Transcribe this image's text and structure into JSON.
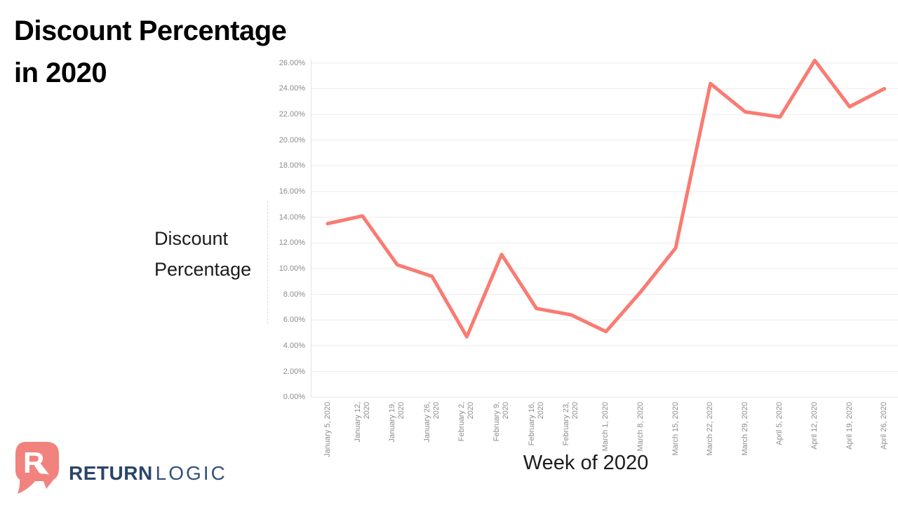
{
  "title": {
    "line1": "Discount Percentage",
    "line2": "in 2020"
  },
  "y_axis_title": "Discount\nPercentage",
  "x_axis_title": "Week of 2020",
  "logo": {
    "brand_bold": "RETURN",
    "brand_light": "LOGIC",
    "icon": "returnlogic-r-arrow-icon",
    "icon_color": "#F2827E",
    "text_color": "#2B4569"
  },
  "chart_data": {
    "type": "line",
    "title": "Discount Percentage in 2020",
    "xlabel": "Week of 2020",
    "ylabel": "Discount Percentage",
    "categories": [
      "January 5, 2020",
      "January 12, 2020",
      "January 19, 2020",
      "January 26, 2020",
      "February 2, 2020",
      "February 9, 2020",
      "February 16, 2020",
      "February 23, 2020",
      "March 1, 2020",
      "March 8, 2020",
      "March 15, 2020",
      "March 22, 2020",
      "March 29, 2020",
      "April 5, 2020",
      "April 12, 2020",
      "April 19, 2020",
      "April 26, 2020"
    ],
    "x_tick_display": [
      "January 5, 2020",
      "January 12,\n2020",
      "January 19,\n2020",
      "January 26,\n2020",
      "February 2,\n2020",
      "February 9,\n2020",
      "February 16,\n2020",
      "February 23,\n2020",
      "March 1, 2020",
      "March 8, 2020",
      "March 15, 2020",
      "March 22, 2020",
      "March 29, 2020",
      "April 5, 2020",
      "April 12, 2020",
      "April 19, 2020",
      "April 26, 2020"
    ],
    "values": [
      13.5,
      14.1,
      10.3,
      9.4,
      4.7,
      11.1,
      6.9,
      6.4,
      5.1,
      8.2,
      11.6,
      24.4,
      22.2,
      21.8,
      26.2,
      22.6,
      24.0
    ],
    "unit": "%",
    "yticks": [
      "0.00%",
      "2.00%",
      "4.00%",
      "6.00%",
      "8.00%",
      "10.00%",
      "12.00%",
      "14.00%",
      "16.00%",
      "18.00%",
      "20.00%",
      "22.00%",
      "24.00%",
      "26.00%"
    ],
    "ylim": [
      0,
      26
    ],
    "ytick_step": 2,
    "grid": true,
    "legend": "none",
    "line_color": "#F97B72",
    "grid_color": "#ececec",
    "axis_color": "#e3e3e3"
  }
}
